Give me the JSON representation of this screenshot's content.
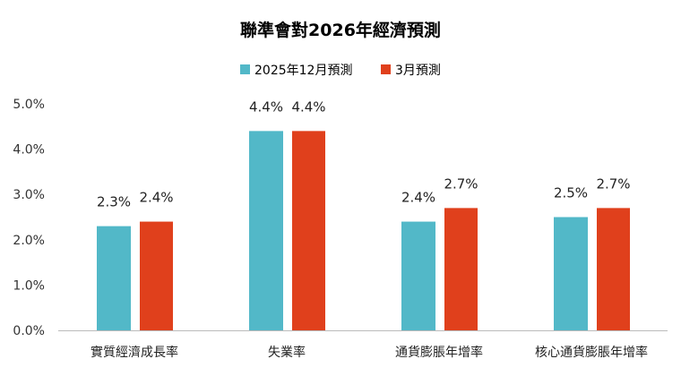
{
  "chart_data": {
    "type": "bar",
    "title": "聯準會對2026年經濟預測",
    "categories": [
      "實質經濟成長率",
      "失業率",
      "通貨膨脹年增率",
      "核心通貨膨脹年增率"
    ],
    "series": [
      {
        "name": "2025年12月預測",
        "color": "#52b8c8",
        "values": [
          2.3,
          4.4,
          2.4,
          2.5
        ],
        "labels": [
          "2.3%",
          "4.4%",
          "2.4%",
          "2.5%"
        ]
      },
      {
        "name": "3月預測",
        "color": "#e0401c",
        "values": [
          2.4,
          4.4,
          2.7,
          2.7
        ],
        "labels": [
          "2.4%",
          "4.4%",
          "2.7%",
          "2.7%"
        ]
      }
    ],
    "ylim": [
      0,
      5
    ],
    "yticks": [
      "0.0%",
      "1.0%",
      "2.0%",
      "3.0%",
      "4.0%",
      "5.0%"
    ],
    "grid": false,
    "legend": "top-center",
    "xlabel": "",
    "ylabel": ""
  }
}
